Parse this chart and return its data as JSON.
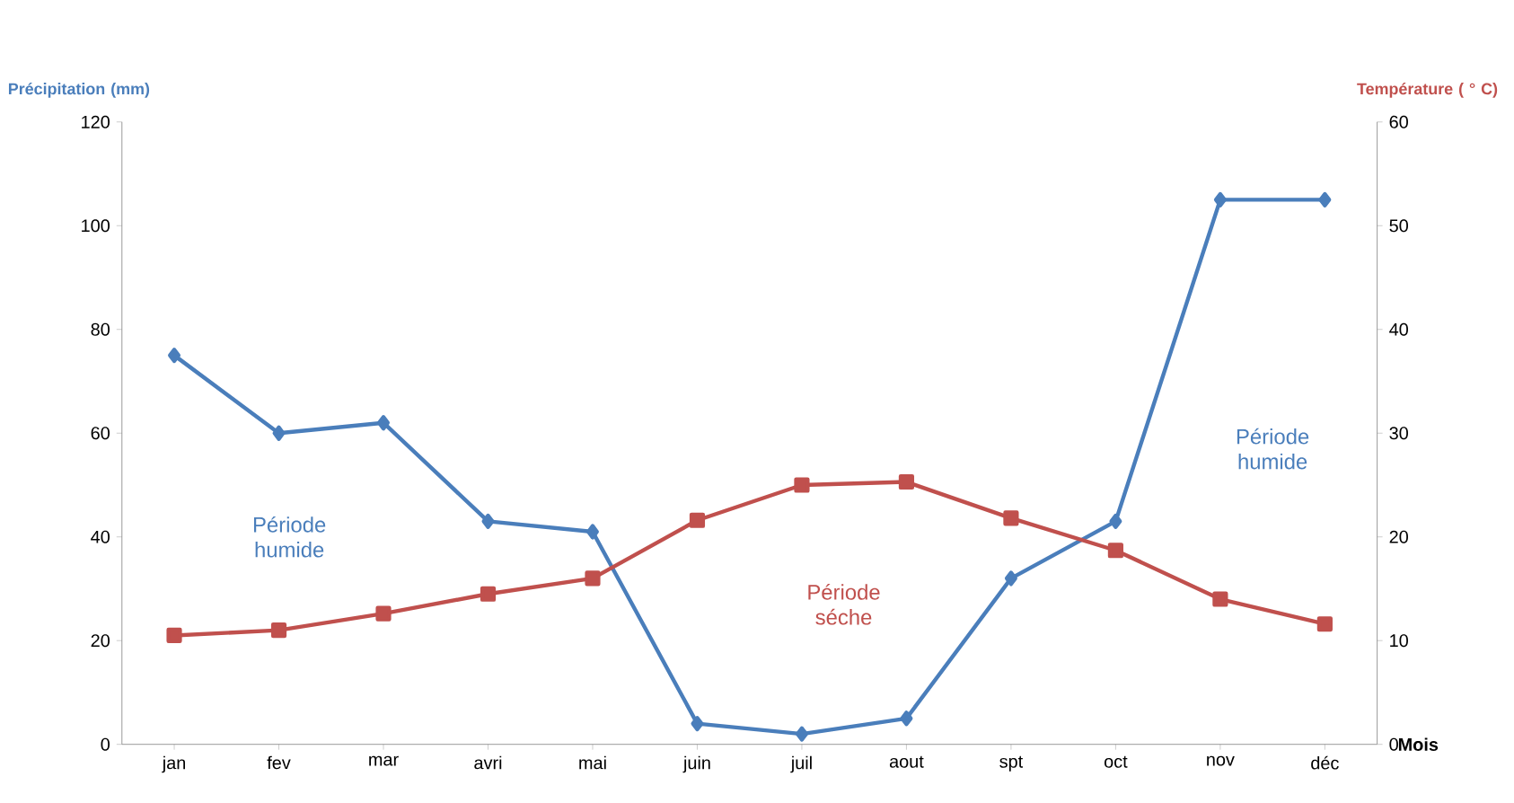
{
  "chart_data": {
    "type": "line",
    "categories": [
      "jan",
      "fev",
      "mar",
      "avri",
      "mai",
      "juin",
      "juil",
      "aout",
      "spt",
      "oct",
      "nov",
      "déc"
    ],
    "series": [
      {
        "color": "#4a7ebb",
        "values": [
          75,
          60,
          62,
          43,
          41,
          4,
          2,
          5,
          32,
          43,
          105,
          105
        ],
        "marker": "diamond"
      },
      {
        "color": "#c0504d",
        "values": [
          10.5,
          11,
          12.6,
          14.5,
          16,
          21.6,
          25,
          25.3,
          21.8,
          18.7,
          14,
          11.6
        ],
        "marker": "square",
        "axis": "y2"
      }
    ],
    "ylabel": "Précipitation (mm)",
    "y2label": "Température ( ° C)",
    "xlabel": "Mois",
    "ylim": [
      0,
      120
    ],
    "yticks": [
      0,
      20,
      40,
      60,
      80,
      100,
      120
    ],
    "y2lim": [
      0,
      60
    ],
    "y2ticks": [
      0,
      10,
      20,
      30,
      40,
      50,
      60
    ],
    "annotations": [
      "Période humide",
      "Période séche",
      "Période humide"
    ],
    "grid": false
  }
}
